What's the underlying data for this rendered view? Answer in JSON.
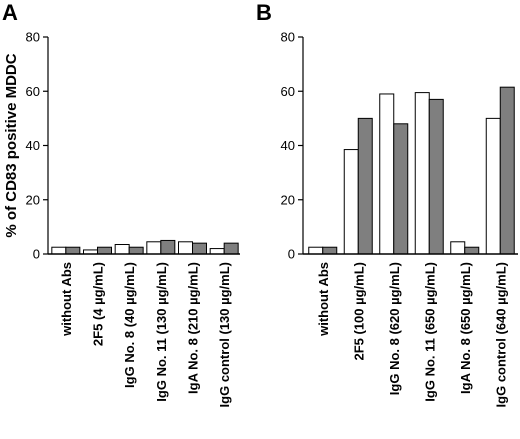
{
  "figure": {
    "ylabel": "% of CD83 positive MDDC"
  },
  "chart_data": [
    {
      "type": "bar",
      "panel_label": "A",
      "ylim": [
        0,
        80
      ],
      "yticks": [
        0,
        20,
        40,
        60,
        80
      ],
      "categories": [
        "without Abs",
        "2F5 (4 µg/mL)",
        "IgG No. 8 (40 µg/mL)",
        "IgG No. 11 (130 µg/mL)",
        "IgA No. 8 (210 µg/mL)",
        "IgG control (130 µg/mL)"
      ],
      "series": [
        {
          "color": "#ffffff",
          "values": [
            2.5,
            1.5,
            3.5,
            4.5,
            4.5,
            2.0
          ]
        },
        {
          "color": "#7f7f7f",
          "values": [
            2.5,
            2.5,
            2.5,
            5.0,
            4.0,
            4.0
          ]
        }
      ],
      "ylabel": "% of CD83 positive MDDC",
      "xlabel": "",
      "grid": false
    },
    {
      "type": "bar",
      "panel_label": "B",
      "ylim": [
        0,
        80
      ],
      "yticks": [
        0,
        20,
        40,
        60,
        80
      ],
      "categories": [
        "without Abs",
        "2F5 (100 µg/mL)",
        "IgG No. 8 (620 µg/mL)",
        "IgG No. 11 (650 µg/mL)",
        "IgA No. 8 (650 µg/mL)",
        "IgG control (640 µg/mL)"
      ],
      "series": [
        {
          "color": "#ffffff",
          "values": [
            2.5,
            38.5,
            59.0,
            59.5,
            4.5,
            50.0
          ]
        },
        {
          "color": "#7f7f7f",
          "values": [
            2.5,
            50.0,
            48.0,
            57.0,
            2.5,
            61.5
          ]
        }
      ],
      "ylabel": "",
      "xlabel": "",
      "grid": false
    }
  ]
}
